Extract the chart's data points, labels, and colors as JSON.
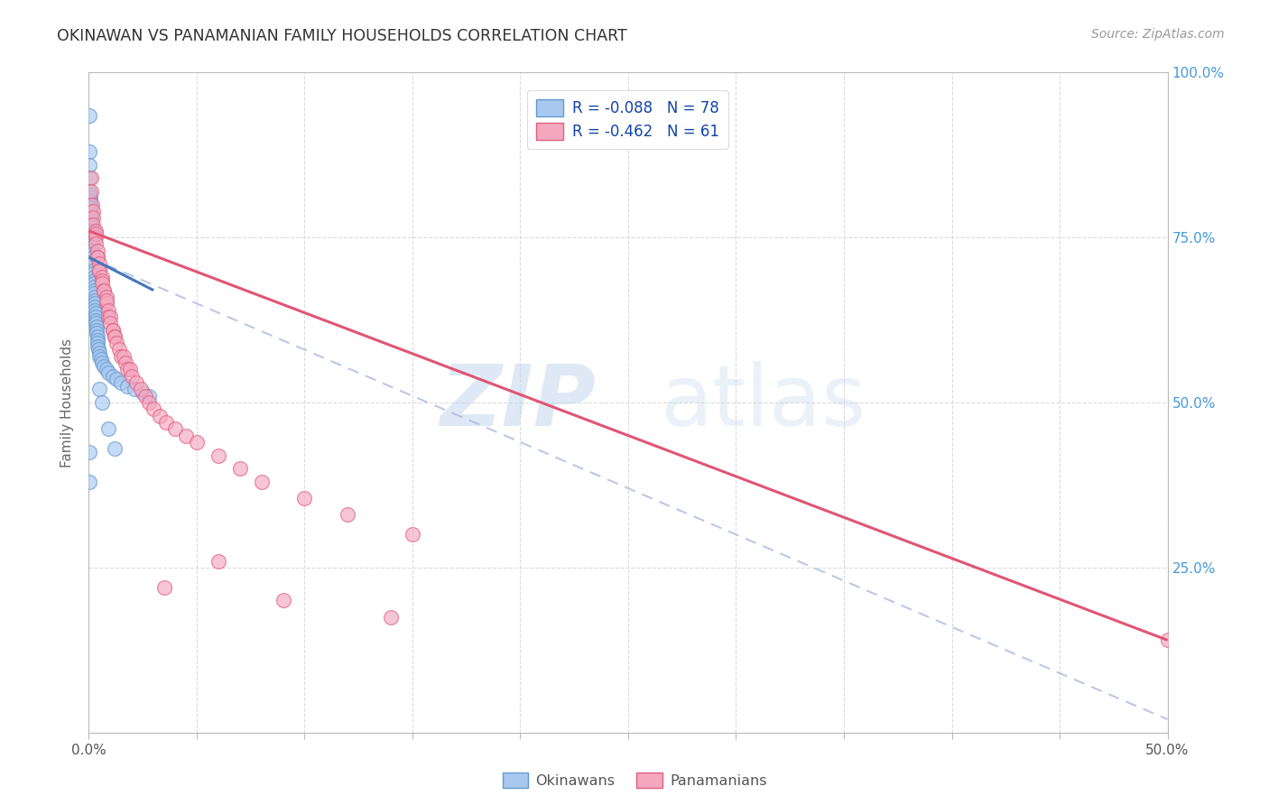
{
  "title": "OKINAWAN VS PANAMANIAN FAMILY HOUSEHOLDS CORRELATION CHART",
  "source": "Source: ZipAtlas.com",
  "ylabel": "Family Households",
  "blue_color": "#A8C8F0",
  "pink_color": "#F4A8C0",
  "blue_edge_color": "#6699CC",
  "pink_edge_color": "#E06080",
  "blue_line_color": "#4477BB",
  "pink_line_color": "#E05575",
  "dash_line_color": "#AABBDD",
  "right_tick_color": "#4499DD",
  "watermark_zip_color": "#C5D8EE",
  "watermark_atlas_color": "#C5D8EE",
  "legend_text_color": "#1144AA",
  "bottom_legend_color": "#555555",
  "title_color": "#333333",
  "source_color": "#999999",
  "okinawan_x": [
    0.0002,
    0.0003,
    0.0003,
    0.0004,
    0.0004,
    0.0005,
    0.0005,
    0.0006,
    0.0006,
    0.0007,
    0.0007,
    0.0008,
    0.0008,
    0.0009,
    0.0009,
    0.001,
    0.001,
    0.001,
    0.001,
    0.0012,
    0.0012,
    0.0013,
    0.0013,
    0.0014,
    0.0015,
    0.0015,
    0.0016,
    0.0016,
    0.0017,
    0.0018,
    0.0018,
    0.0019,
    0.002,
    0.002,
    0.0021,
    0.0022,
    0.0022,
    0.0023,
    0.0024,
    0.0025,
    0.0025,
    0.0026,
    0.0027,
    0.0028,
    0.0028,
    0.0029,
    0.003,
    0.003,
    0.0032,
    0.0033,
    0.0034,
    0.0035,
    0.0036,
    0.0038,
    0.004,
    0.004,
    0.0042,
    0.0045,
    0.0048,
    0.005,
    0.0055,
    0.006,
    0.007,
    0.008,
    0.009,
    0.011,
    0.013,
    0.015,
    0.018,
    0.021,
    0.025,
    0.028,
    0.0003,
    0.0004,
    0.005,
    0.006,
    0.009,
    0.012
  ],
  "okinawan_y": [
    0.935,
    0.88,
    0.86,
    0.84,
    0.82,
    0.815,
    0.81,
    0.805,
    0.8,
    0.795,
    0.795,
    0.79,
    0.79,
    0.785,
    0.78,
    0.775,
    0.775,
    0.77,
    0.765,
    0.765,
    0.76,
    0.76,
    0.755,
    0.75,
    0.745,
    0.74,
    0.74,
    0.735,
    0.73,
    0.725,
    0.72,
    0.715,
    0.71,
    0.7,
    0.695,
    0.69,
    0.685,
    0.68,
    0.675,
    0.67,
    0.665,
    0.66,
    0.655,
    0.65,
    0.645,
    0.64,
    0.635,
    0.63,
    0.625,
    0.62,
    0.615,
    0.61,
    0.605,
    0.6,
    0.595,
    0.59,
    0.585,
    0.58,
    0.575,
    0.57,
    0.565,
    0.56,
    0.555,
    0.55,
    0.545,
    0.54,
    0.535,
    0.53,
    0.525,
    0.52,
    0.515,
    0.51,
    0.425,
    0.38,
    0.52,
    0.5,
    0.46,
    0.43
  ],
  "panamanian_x": [
    0.001,
    0.001,
    0.0015,
    0.002,
    0.002,
    0.002,
    0.003,
    0.003,
    0.003,
    0.003,
    0.004,
    0.004,
    0.004,
    0.005,
    0.005,
    0.005,
    0.006,
    0.006,
    0.006,
    0.007,
    0.007,
    0.008,
    0.008,
    0.008,
    0.009,
    0.009,
    0.01,
    0.01,
    0.011,
    0.011,
    0.012,
    0.012,
    0.013,
    0.014,
    0.015,
    0.016,
    0.017,
    0.018,
    0.019,
    0.02,
    0.022,
    0.024,
    0.026,
    0.028,
    0.03,
    0.033,
    0.036,
    0.04,
    0.045,
    0.05,
    0.06,
    0.07,
    0.08,
    0.1,
    0.12,
    0.15,
    0.035,
    0.06,
    0.09,
    0.14,
    0.5
  ],
  "panamanian_y": [
    0.84,
    0.82,
    0.8,
    0.79,
    0.78,
    0.77,
    0.76,
    0.75,
    0.755,
    0.74,
    0.73,
    0.72,
    0.72,
    0.71,
    0.7,
    0.7,
    0.69,
    0.685,
    0.68,
    0.67,
    0.67,
    0.66,
    0.65,
    0.655,
    0.64,
    0.63,
    0.63,
    0.62,
    0.61,
    0.61,
    0.6,
    0.6,
    0.59,
    0.58,
    0.57,
    0.57,
    0.56,
    0.55,
    0.55,
    0.54,
    0.53,
    0.52,
    0.51,
    0.5,
    0.49,
    0.48,
    0.47,
    0.46,
    0.45,
    0.44,
    0.42,
    0.4,
    0.38,
    0.355,
    0.33,
    0.3,
    0.22,
    0.26,
    0.2,
    0.175,
    0.14
  ],
  "xlim": [
    0.0,
    0.5
  ],
  "ylim": [
    0.0,
    1.0
  ],
  "blue_trendline_x": [
    0.0,
    0.03
  ],
  "blue_trendline_y": [
    0.72,
    0.67
  ],
  "pink_trendline_x": [
    0.0,
    0.5
  ],
  "pink_trendline_y": [
    0.76,
    0.14
  ],
  "dash_trendline_x": [
    0.0,
    0.5
  ],
  "dash_trendline_y": [
    0.72,
    0.02
  ]
}
